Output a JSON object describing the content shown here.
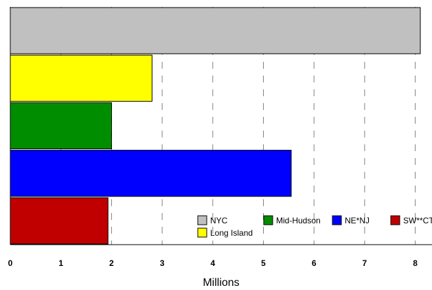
{
  "chart_data": {
    "type": "bar",
    "orientation": "horizontal",
    "title": "",
    "xlabel": "Millions",
    "ylabel": "",
    "xlim": [
      0,
      8.5
    ],
    "xticks": [
      "0",
      "1",
      "2",
      "3",
      "4",
      "5",
      "6",
      "7",
      "8"
    ],
    "grid": "vertical dashed",
    "legend_position": "bottom-right",
    "categories": [
      "NYC",
      "Long Island",
      "Mid-Hudson",
      "NE*NJ",
      "SW**CT"
    ],
    "values": [
      8.1,
      2.8,
      2.0,
      5.55,
      1.93
    ],
    "colors": [
      "#c0c0c0",
      "#ffff00",
      "#008e00",
      "#0000ff",
      "#c00000"
    ],
    "legend": [
      {
        "label": "NYC",
        "color": "#c0c0c0"
      },
      {
        "label": "Mid-Hudson",
        "color": "#008e00"
      },
      {
        "label": "NE*NJ",
        "color": "#0000ff"
      },
      {
        "label": "SW**CT",
        "color": "#c00000"
      },
      {
        "label": "Long Island",
        "color": "#ffff00"
      }
    ]
  }
}
